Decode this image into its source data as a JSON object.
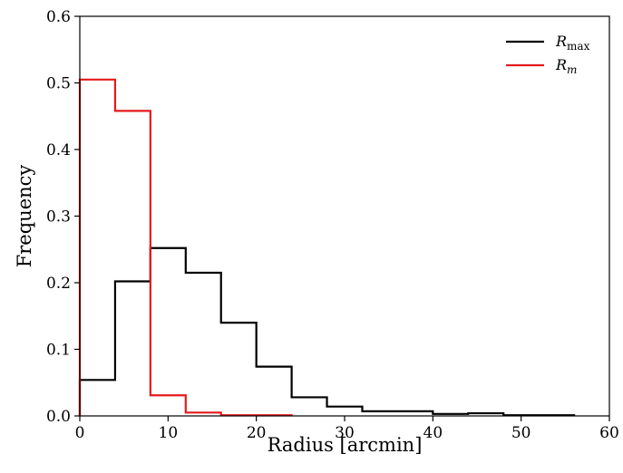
{
  "chart_data": {
    "type": "line",
    "title": "",
    "xlabel": "Radius [arcmin]",
    "ylabel": "Frequency",
    "xlim": [
      0,
      60
    ],
    "ylim": [
      0,
      0.6
    ],
    "xticks": [
      "0",
      "10",
      "20",
      "30",
      "40",
      "50",
      "60"
    ],
    "yticks": [
      "0.0",
      "0.1",
      "0.2",
      "0.3",
      "0.4",
      "0.5",
      "0.6"
    ],
    "grid": false,
    "legend_position": "top-right",
    "bin_edges": [
      0,
      4,
      8,
      12,
      16,
      20,
      24,
      28,
      32,
      36,
      40,
      44,
      48,
      52,
      56
    ],
    "series": [
      {
        "name": "R",
        "name_sub": "max",
        "color": "#000000",
        "values": [
          0.054,
          0.202,
          0.252,
          0.215,
          0.14,
          0.074,
          0.028,
          0.014,
          0.007,
          0.007,
          0.003,
          0.004,
          0.001,
          0.001
        ]
      },
      {
        "name": "R",
        "name_sub": "m",
        "color": "#e41a1c",
        "values": [
          0.505,
          0.458,
          0.031,
          0.005,
          0.001,
          0.001
        ]
      }
    ]
  }
}
